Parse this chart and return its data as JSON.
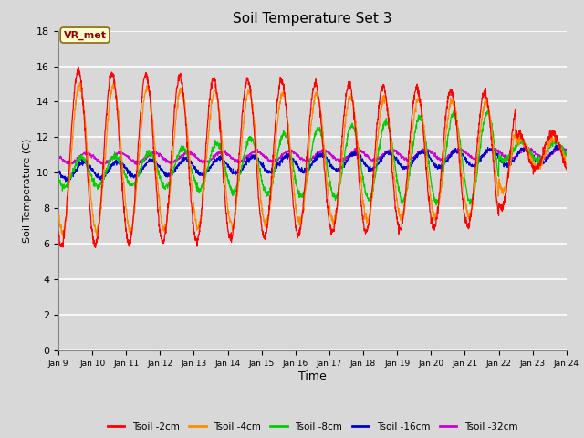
{
  "title": "Soil Temperature Set 3",
  "xlabel": "Time",
  "ylabel": "Soil Temperature (C)",
  "ylim": [
    0,
    18
  ],
  "yticks": [
    0,
    2,
    4,
    6,
    8,
    10,
    12,
    14,
    16,
    18
  ],
  "xtick_labels": [
    "Jan 9",
    "Jan 10",
    "Jan 11",
    "Jan 12",
    "Jan 13",
    "Jan 14",
    "Jan 15",
    "Jan 16",
    "Jan 17",
    "Jan 18",
    "Jan 19",
    "Jan 20",
    "Jan 21",
    "Jan 22",
    "Jan 23",
    "Jan 24"
  ],
  "background_color": "#d8d8d8",
  "plot_bg_color": "#d8d8d8",
  "grid_color": "#ffffff",
  "annotation_text": "VR_met",
  "annotation_box_color": "#ffffcc",
  "annotation_border_color": "#8b6914",
  "colors": {
    "Tsoil -2cm": "#ff0000",
    "Tsoil -4cm": "#ff8c00",
    "Tsoil -8cm": "#00cc00",
    "Tsoil -16cm": "#0000cc",
    "Tsoil -32cm": "#cc00cc"
  },
  "legend_labels": [
    "Tsoil -2cm",
    "Tsoil -4cm",
    "Tsoil -8cm",
    "Tsoil -16cm",
    "Tsoil -32cm"
  ]
}
